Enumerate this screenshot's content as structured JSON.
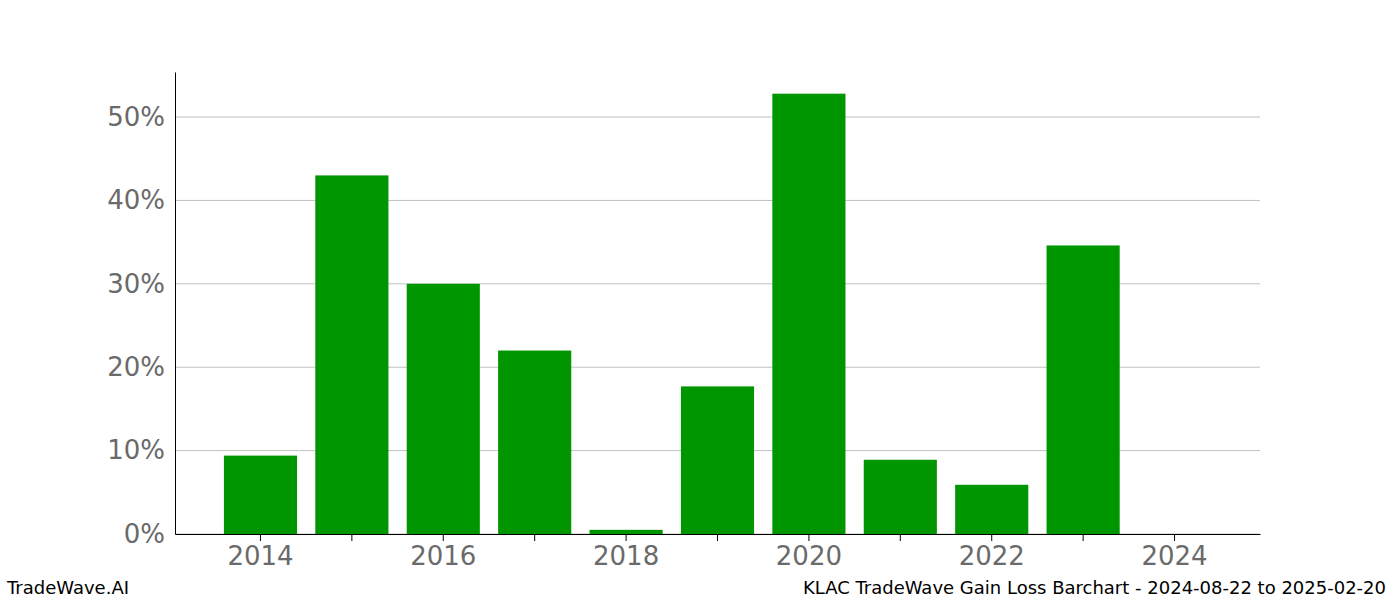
{
  "chart_data": {
    "type": "bar",
    "categories": [
      "2014",
      null,
      "2016",
      null,
      "2018",
      null,
      "2020",
      null,
      "2022",
      null,
      "2024"
    ],
    "values": [
      9.4,
      43.0,
      30.0,
      22.0,
      0.5,
      17.7,
      52.8,
      8.9,
      5.9,
      34.6,
      0
    ],
    "color": "#009600",
    "ylim": [
      0,
      55.4
    ],
    "yticks": [
      {
        "value": 0,
        "label": "0%"
      },
      {
        "value": 10,
        "label": "10%"
      },
      {
        "value": 20,
        "label": "20%"
      },
      {
        "value": 30,
        "label": "30%"
      },
      {
        "value": 40,
        "label": "40%"
      },
      {
        "value": 50,
        "label": "50%"
      }
    ],
    "grid": true,
    "annotations": [
      "TradeWave.AI",
      "KLAC TradeWave Gain Loss Barchart - 2024-08-22 to 2025-02-20"
    ]
  }
}
